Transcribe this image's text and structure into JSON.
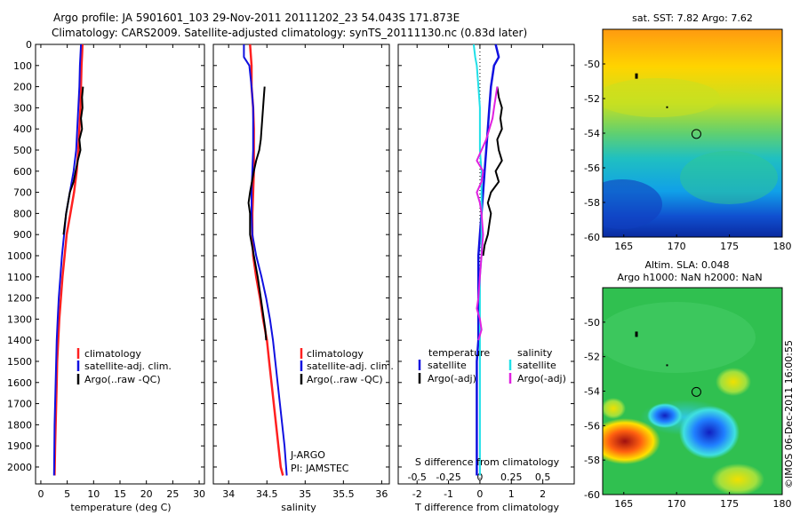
{
  "header": {
    "title_line1": "Argo profile: JA 5901601_103 29-Nov-2011 20111202_23 54.043S 171.873E",
    "title_line2": "Climatology: CARS2009. Satellite-adjusted climatology: synTS_20111130.nc (0.83d later)"
  },
  "colors": {
    "climatology": "#ff2020",
    "satellite": "#1010e0",
    "argo": "#000000",
    "salinity_diff": "#20e0e8",
    "salinity_argo": "#e020e0"
  },
  "chart_data": [
    {
      "type": "line",
      "id": "temperature",
      "xlabel": "temperature (deg C)",
      "ylabel": "",
      "xlim": [
        -1,
        31
      ],
      "ylim": [
        2080,
        0
      ],
      "xticks": [
        0,
        5,
        10,
        15,
        20,
        25,
        30
      ],
      "yticks": [
        0,
        100,
        200,
        300,
        400,
        500,
        600,
        700,
        800,
        900,
        1000,
        1100,
        1200,
        1300,
        1400,
        1500,
        1600,
        1700,
        1800,
        1900,
        2000
      ],
      "series": [
        {
          "name": "climatology",
          "color": "#ff2020",
          "x": [
            7.9,
            7.8,
            7.7,
            7.6,
            7.5,
            7.3,
            7.1,
            6.8,
            6.3,
            5.6,
            4.9,
            4.5,
            4.1,
            3.8,
            3.5,
            3.3,
            3.1,
            3.0,
            2.9,
            2.8,
            2.7,
            2.6
          ],
          "y": [
            0,
            50,
            100,
            200,
            300,
            400,
            500,
            600,
            700,
            800,
            900,
            1000,
            1100,
            1200,
            1300,
            1400,
            1500,
            1600,
            1700,
            1800,
            1900,
            2040
          ]
        },
        {
          "name": "satellite-adj. clim.",
          "color": "#1010e0",
          "x": [
            7.6,
            7.5,
            7.4,
            7.3,
            7.1,
            6.9,
            6.7,
            6.2,
            5.5,
            4.8,
            4.4,
            4.0,
            3.7,
            3.4,
            3.2,
            3.0,
            2.9,
            2.8,
            2.7,
            2.6,
            2.5
          ],
          "y": [
            0,
            50,
            100,
            200,
            300,
            400,
            500,
            600,
            700,
            800,
            900,
            1000,
            1100,
            1200,
            1300,
            1400,
            1500,
            1600,
            1700,
            1800,
            2040
          ]
        },
        {
          "name": "Argo(..raw -QC)",
          "color": "#000000",
          "x": [
            8.0,
            7.8,
            7.9,
            7.6,
            7.8,
            7.3,
            7.5,
            7.0,
            6.6,
            6.2,
            5.5,
            4.8,
            4.3
          ],
          "y": [
            200,
            250,
            300,
            350,
            400,
            450,
            500,
            550,
            600,
            650,
            700,
            800,
            900
          ]
        }
      ]
    },
    {
      "type": "line",
      "id": "salinity",
      "xlabel": "salinity",
      "ylabel": "",
      "xlim": [
        33.8,
        36.1
      ],
      "ylim": [
        2080,
        0
      ],
      "xticks": [
        34,
        34.5,
        35,
        35.5,
        36
      ],
      "yticks": [],
      "series": [
        {
          "name": "climatology",
          "color": "#ff2020",
          "x": [
            34.28,
            34.3,
            34.3,
            34.32,
            34.33,
            34.33,
            34.33,
            34.32,
            34.31,
            34.31,
            34.32,
            34.36,
            34.41,
            34.45,
            34.5,
            34.53,
            34.56,
            34.59,
            34.62,
            34.65,
            34.68,
            34.71
          ],
          "y": [
            0,
            100,
            200,
            300,
            400,
            500,
            600,
            700,
            800,
            900,
            1000,
            1100,
            1200,
            1300,
            1400,
            1500,
            1600,
            1700,
            1800,
            1900,
            2000,
            2040
          ]
        },
        {
          "name": "satellite-adj. clim.",
          "color": "#1010e0",
          "x": [
            34.2,
            34.2,
            34.27,
            34.3,
            34.32,
            34.32,
            34.32,
            34.31,
            34.3,
            34.3,
            34.31,
            34.36,
            34.43,
            34.49,
            34.54,
            34.58,
            34.61,
            34.64,
            34.67,
            34.7,
            34.73,
            34.76
          ],
          "y": [
            0,
            60,
            100,
            200,
            300,
            400,
            500,
            600,
            700,
            800,
            900,
            1000,
            1100,
            1200,
            1300,
            1400,
            1500,
            1600,
            1700,
            1800,
            1900,
            2040
          ]
        },
        {
          "name": "Argo(..raw -QC)",
          "color": "#000000",
          "x": [
            34.47,
            34.46,
            34.44,
            34.42,
            34.4,
            34.36,
            34.33,
            34.28,
            34.26,
            34.28,
            34.28,
            34.33,
            34.38,
            34.42,
            34.46,
            34.48,
            34.49
          ],
          "y": [
            200,
            250,
            350,
            450,
            500,
            550,
            600,
            700,
            750,
            800,
            900,
            1000,
            1100,
            1200,
            1300,
            1350,
            1400
          ]
        }
      ],
      "annotations": [
        "J-ARGO",
        "PI: JAMSTEC"
      ]
    },
    {
      "type": "line",
      "id": "difference",
      "xlabel": "T difference from climatology",
      "xlabel2": "S difference from climatology",
      "ylabel": "",
      "xlim": [
        -2.6,
        3.0
      ],
      "ylim": [
        2080,
        0
      ],
      "xticks": [
        -2,
        -1,
        0,
        1,
        2
      ],
      "xticks2": [
        -0.5,
        -0.25,
        0,
        0.25,
        0.5
      ],
      "series": [
        {
          "name": "temperature satellite",
          "color": "#1010e0",
          "x": [
            0.5,
            0.6,
            0.45,
            0.35,
            0.3,
            0.25,
            0.2,
            0.15,
            0.1,
            0.05,
            0.0,
            -0.05,
            -0.05,
            -0.05,
            -0.05,
            -0.05,
            -0.1,
            -0.1,
            -0.1,
            -0.1,
            -0.1
          ],
          "y": [
            0,
            60,
            100,
            200,
            300,
            400,
            500,
            600,
            700,
            800,
            900,
            1000,
            1100,
            1200,
            1300,
            1400,
            1500,
            1600,
            1700,
            1800,
            2040
          ]
        },
        {
          "name": "temperature Argo(-adj)",
          "color": "#000000",
          "x": [
            0.55,
            0.6,
            0.7,
            0.65,
            0.7,
            0.55,
            0.6,
            0.7,
            0.5,
            0.6,
            0.35,
            0.25,
            0.35,
            0.3,
            0.25,
            0.15,
            0.1
          ],
          "y": [
            200,
            250,
            300,
            350,
            400,
            450,
            500,
            550,
            600,
            650,
            700,
            750,
            800,
            850,
            900,
            950,
            1000
          ]
        },
        {
          "name": "salinity satellite",
          "color": "#20e0e8",
          "x": [
            -0.2,
            -0.15,
            -0.1,
            -0.05,
            0.0,
            0.0,
            0.0,
            0.05,
            0.05,
            0.05,
            0.05,
            0.05,
            0.0,
            0.0,
            0.0,
            0.0,
            0.0,
            0.0,
            0.0,
            0.0,
            0.0
          ],
          "y": [
            0,
            60,
            100,
            200,
            300,
            400,
            500,
            600,
            700,
            800,
            900,
            1000,
            1100,
            1200,
            1300,
            1400,
            1500,
            1600,
            1700,
            1800,
            2040
          ]
        },
        {
          "name": "salinity Argo(-adj)",
          "color": "#e020e0",
          "x": [
            0.55,
            0.5,
            0.45,
            0.4,
            0.2,
            -0.1,
            0.1,
            0.05,
            -0.1,
            0.0,
            0.05,
            0.1,
            0.05,
            0.0,
            -0.05,
            -0.1,
            0.0,
            0.05,
            -0.05
          ],
          "y": [
            200,
            250,
            300,
            350,
            450,
            550,
            600,
            650,
            700,
            750,
            800,
            900,
            1000,
            1100,
            1200,
            1250,
            1300,
            1350,
            1400
          ]
        }
      ],
      "legend": {
        "temperature": "temperature",
        "salinity": "salinity",
        "satellite": "satellite",
        "argo": "Argo(-adj)"
      }
    },
    {
      "type": "heatmap",
      "id": "sst-map",
      "title": "sat. SST: 7.82  Argo: 7.62",
      "xlim": [
        163,
        180
      ],
      "ylim": [
        -60,
        -48
      ],
      "xticks": [
        165,
        170,
        175,
        180
      ],
      "yticks": [
        -50,
        -52,
        -54,
        -56,
        -58,
        -60
      ],
      "profile_location": {
        "lon": 171.873,
        "lat": -54.043
      }
    },
    {
      "type": "heatmap",
      "id": "sla-map",
      "title": "Altim. SLA: 0.048",
      "subtitle": "Argo h1000: NaN h2000: NaN",
      "xlim": [
        163,
        180
      ],
      "ylim": [
        -60,
        -48
      ],
      "xticks": [
        165,
        170,
        175,
        180
      ],
      "yticks": [
        -50,
        -52,
        -54,
        -56,
        -58,
        -60
      ],
      "profile_location": {
        "lon": 171.873,
        "lat": -54.043
      }
    }
  ],
  "footer": {
    "stamp": "©IMOS 06-Dec-2011 16:00:55"
  }
}
